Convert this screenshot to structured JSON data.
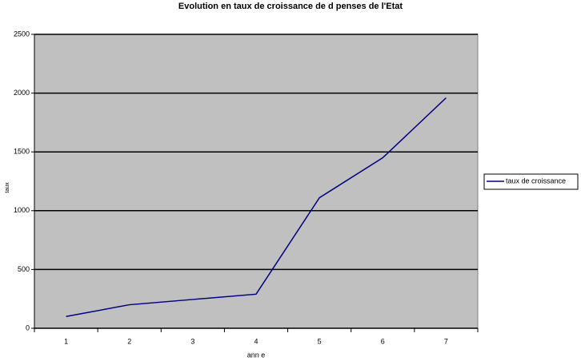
{
  "chart_data": {
    "type": "line",
    "title": "Evolution en taux de croissance de d  penses de l'Etat",
    "x_label": "ann  e",
    "y_label": "taux",
    "categories": [
      "1",
      "2",
      "3",
      "4",
      "5",
      "6",
      "7"
    ],
    "series": [
      {
        "name": "taux de croissance",
        "color": "#000080",
        "values": [
          100,
          200,
          245,
          290,
          1110,
          1450,
          1960
        ]
      }
    ],
    "ylim": [
      0,
      2500
    ],
    "yticks": [
      0,
      500,
      1000,
      1500,
      2000,
      2500
    ],
    "grid": true,
    "legend": "right"
  }
}
